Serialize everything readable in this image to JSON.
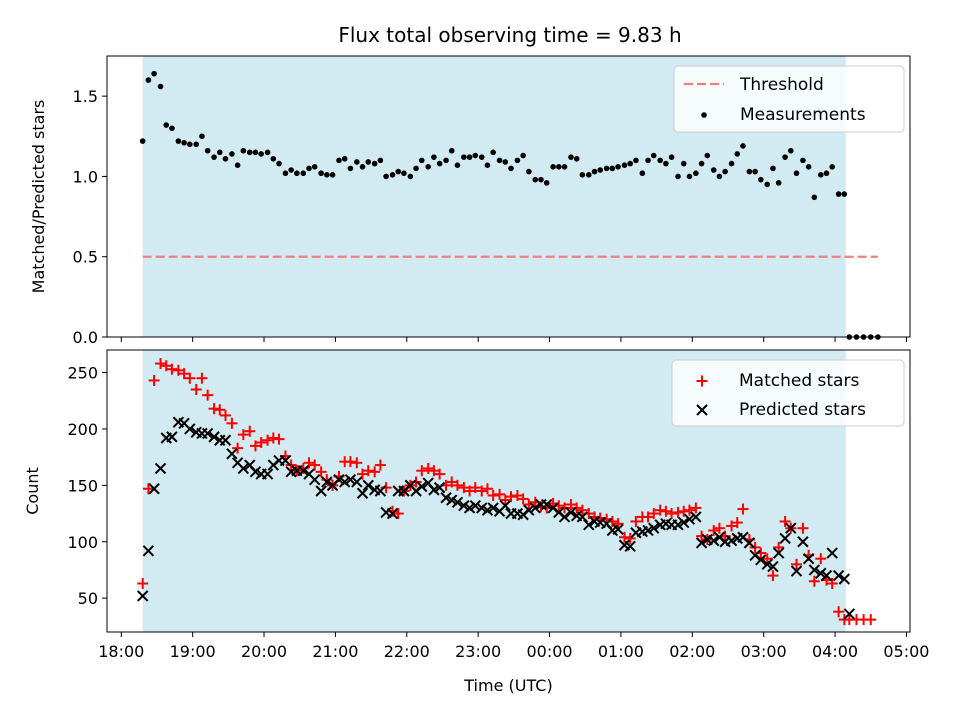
{
  "title": "Flux total observing time = 9.83 h",
  "colors": {
    "shade": "#add8e6",
    "threshold": "#f08080",
    "measurement": "#000000",
    "matched": "#ff0000",
    "predicted": "#000000"
  },
  "chart_data": [
    {
      "type": "scatter",
      "ylabel": "Matched/Predicted stars",
      "ylim": [
        0,
        1.75
      ],
      "yticks": [
        0.0,
        0.5,
        1.0,
        1.5
      ],
      "ytick_labels": [
        "0.0",
        "0.5",
        "1.0",
        "1.5"
      ],
      "shaded_interval_hours": [
        18.3,
        28.15
      ],
      "threshold": {
        "name": "Threshold",
        "value": 0.5,
        "x": [
          18.3,
          28.6
        ]
      },
      "legend": [
        "Threshold",
        "Measurements"
      ],
      "legend_position": "top-right",
      "series": [
        {
          "name": "Measurements",
          "x": [
            18.3,
            18.38,
            18.46,
            18.55,
            18.63,
            18.71,
            18.8,
            18.88,
            18.96,
            19.05,
            19.13,
            19.21,
            19.3,
            19.38,
            19.46,
            19.55,
            19.63,
            19.71,
            19.8,
            19.88,
            19.96,
            20.05,
            20.13,
            20.21,
            20.3,
            20.38,
            20.46,
            20.55,
            20.63,
            20.71,
            20.8,
            20.88,
            20.96,
            21.05,
            21.13,
            21.21,
            21.3,
            21.38,
            21.46,
            21.55,
            21.63,
            21.71,
            21.8,
            21.88,
            21.96,
            22.05,
            22.13,
            22.21,
            22.3,
            22.38,
            22.46,
            22.55,
            22.63,
            22.71,
            22.8,
            22.88,
            22.96,
            23.05,
            23.13,
            23.21,
            23.3,
            23.38,
            23.46,
            23.55,
            23.63,
            23.71,
            23.8,
            23.88,
            23.96,
            24.05,
            24.13,
            24.21,
            24.3,
            24.38,
            24.46,
            24.55,
            24.63,
            24.71,
            24.8,
            24.88,
            24.96,
            25.05,
            25.13,
            25.21,
            25.3,
            25.38,
            25.46,
            25.55,
            25.63,
            25.71,
            25.8,
            25.88,
            25.96,
            26.05,
            26.13,
            26.21,
            26.3,
            26.38,
            26.46,
            26.55,
            26.63,
            26.71,
            26.8,
            26.88,
            26.96,
            27.05,
            27.13,
            27.21,
            27.3,
            27.38,
            27.46,
            27.55,
            27.63,
            27.71,
            27.8,
            27.88,
            27.96,
            28.05,
            28.13,
            28.2,
            28.3,
            28.4,
            28.5,
            28.6
          ],
          "y": [
            1.22,
            1.6,
            1.64,
            1.56,
            1.32,
            1.3,
            1.22,
            1.21,
            1.2,
            1.2,
            1.25,
            1.16,
            1.12,
            1.15,
            1.11,
            1.14,
            1.07,
            1.16,
            1.15,
            1.15,
            1.14,
            1.15,
            1.11,
            1.08,
            1.02,
            1.04,
            1.02,
            1.02,
            1.05,
            1.06,
            1.02,
            1.01,
            1.01,
            1.1,
            1.11,
            1.05,
            1.09,
            1.06,
            1.09,
            1.08,
            1.1,
            1.0,
            1.01,
            1.03,
            1.02,
            1.0,
            1.05,
            1.1,
            1.06,
            1.12,
            1.08,
            1.1,
            1.16,
            1.07,
            1.12,
            1.12,
            1.13,
            1.12,
            1.07,
            1.15,
            1.1,
            1.09,
            1.05,
            1.1,
            1.13,
            1.03,
            0.98,
            0.98,
            0.96,
            1.06,
            1.06,
            1.06,
            1.12,
            1.11,
            1.01,
            1.01,
            1.03,
            1.04,
            1.05,
            1.05,
            1.06,
            1.07,
            1.08,
            1.1,
            1.02,
            1.1,
            1.13,
            1.1,
            1.08,
            1.12,
            1.0,
            1.08,
            1.0,
            1.02,
            1.08,
            1.13,
            1.04,
            1.0,
            1.03,
            1.08,
            1.14,
            1.19,
            1.03,
            1.03,
            0.98,
            0.95,
            1.05,
            0.96,
            1.12,
            1.16,
            1.02,
            1.1,
            1.06,
            0.87,
            1.01,
            1.02,
            1.06,
            0.89,
            0.89,
            0.0,
            0.0,
            0.0,
            0.0,
            0.0
          ]
        }
      ]
    },
    {
      "type": "scatter",
      "ylabel": "Count",
      "xlabel": "Time (UTC)",
      "ylim": [
        20,
        270
      ],
      "yticks": [
        50,
        100,
        150,
        200,
        250
      ],
      "ytick_labels": [
        "50",
        "100",
        "150",
        "200",
        "250"
      ],
      "xlim": [
        17.8,
        29.05
      ],
      "xticks": [
        18,
        19,
        20,
        21,
        22,
        23,
        24,
        25,
        26,
        27,
        28,
        29
      ],
      "xtick_labels": [
        "18:00",
        "19:00",
        "20:00",
        "21:00",
        "22:00",
        "23:00",
        "00:00",
        "01:00",
        "02:00",
        "03:00",
        "04:00",
        "05:00"
      ],
      "shaded_interval_hours": [
        18.3,
        28.15
      ],
      "legend": [
        "Matched stars",
        "Predicted stars"
      ],
      "legend_position": "top-right",
      "x": [
        18.3,
        18.38,
        18.46,
        18.55,
        18.63,
        18.71,
        18.8,
        18.88,
        18.96,
        19.05,
        19.13,
        19.21,
        19.3,
        19.38,
        19.46,
        19.55,
        19.63,
        19.71,
        19.8,
        19.88,
        19.96,
        20.05,
        20.13,
        20.21,
        20.3,
        20.38,
        20.46,
        20.55,
        20.63,
        20.71,
        20.8,
        20.88,
        20.96,
        21.05,
        21.13,
        21.21,
        21.3,
        21.38,
        21.46,
        21.55,
        21.63,
        21.71,
        21.8,
        21.88,
        21.96,
        22.05,
        22.13,
        22.21,
        22.3,
        22.38,
        22.46,
        22.55,
        22.63,
        22.71,
        22.8,
        22.88,
        22.96,
        23.05,
        23.13,
        23.21,
        23.3,
        23.38,
        23.46,
        23.55,
        23.63,
        23.71,
        23.8,
        23.88,
        23.96,
        24.05,
        24.13,
        24.21,
        24.3,
        24.38,
        24.46,
        24.55,
        24.63,
        24.71,
        24.8,
        24.88,
        24.96,
        25.05,
        25.13,
        25.21,
        25.3,
        25.38,
        25.46,
        25.55,
        25.63,
        25.71,
        25.8,
        25.88,
        25.96,
        26.05,
        26.13,
        26.21,
        26.3,
        26.38,
        26.46,
        26.55,
        26.63,
        26.71,
        26.8,
        26.88,
        26.96,
        27.05,
        27.13,
        27.21,
        27.3,
        27.38,
        27.46,
        27.55,
        27.63,
        27.71,
        27.8,
        27.88,
        27.96,
        28.05,
        28.13,
        28.2,
        28.3,
        28.4,
        28.5,
        28.6
      ],
      "series": [
        {
          "name": "Matched stars",
          "marker": "+",
          "values": [
            63,
            147,
            243,
            258,
            256,
            253,
            252,
            249,
            245,
            235,
            245,
            230,
            218,
            217,
            212,
            205,
            183,
            195,
            198,
            185,
            188,
            190,
            192,
            191,
            176,
            168,
            163,
            165,
            170,
            168,
            162,
            155,
            150,
            158,
            171,
            171,
            170,
            160,
            163,
            162,
            168,
            148,
            127,
            125,
            145,
            150,
            153,
            163,
            165,
            163,
            160,
            150,
            153,
            150,
            148,
            145,
            148,
            145,
            147,
            141,
            142,
            137,
            140,
            141,
            138,
            133,
            135,
            131,
            130,
            134,
            132,
            130,
            133,
            130,
            128,
            125,
            122,
            121,
            120,
            118,
            116,
            104,
            103,
            118,
            122,
            122,
            125,
            128,
            127,
            125,
            126,
            127,
            128,
            130,
            105,
            102,
            110,
            112,
            105,
            114,
            117,
            129,
            102,
            95,
            90,
            85,
            70,
            95,
            118,
            112,
            80,
            112,
            88,
            65,
            85,
            66,
            63,
            38,
            31,
            31,
            31,
            31,
            31
          ],
          "color": "#ff0000"
        },
        {
          "name": "Predicted stars",
          "marker": "x",
          "values": [
            52,
            92,
            147,
            165,
            192,
            193,
            206,
            205,
            200,
            197,
            196,
            196,
            193,
            190,
            190,
            178,
            170,
            165,
            168,
            162,
            160,
            160,
            168,
            172,
            172,
            162,
            163,
            163,
            160,
            155,
            145,
            153,
            150,
            155,
            153,
            155,
            153,
            143,
            150,
            146,
            145,
            126,
            125,
            145,
            145,
            150,
            145,
            149,
            152,
            146,
            148,
            139,
            137,
            135,
            132,
            130,
            132,
            130,
            128,
            130,
            127,
            132,
            125,
            125,
            124,
            128,
            130,
            133,
            133,
            130,
            126,
            122,
            126,
            123,
            122,
            115,
            118,
            117,
            116,
            110,
            111,
            97,
            96,
            108,
            109,
            110,
            112,
            115,
            116,
            115,
            115,
            117,
            120,
            122,
            99,
            102,
            101,
            104,
            100,
            101,
            103,
            104,
            99,
            88,
            84,
            80,
            78,
            90,
            103,
            112,
            74,
            100,
            85,
            75,
            72,
            70,
            90,
            70,
            67,
            36,
            null,
            null,
            null,
            null
          ],
          "color": "#000000"
        }
      ]
    }
  ]
}
